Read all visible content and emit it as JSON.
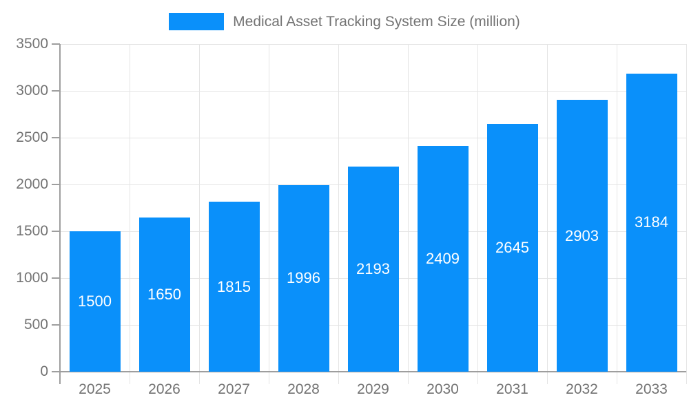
{
  "chart_data": {
    "type": "bar",
    "title": "Medical Asset Tracking System Size (million)",
    "legend": [
      "Medical Asset Tracking System Size (million)"
    ],
    "legend_position": "top-center",
    "categories": [
      "2025",
      "2026",
      "2027",
      "2028",
      "2029",
      "2030",
      "2031",
      "2032",
      "2033"
    ],
    "values": [
      1500,
      1650,
      1815,
      1996,
      2193,
      2409,
      2645,
      2903,
      3184
    ],
    "xlabel": "",
    "ylabel": "",
    "ylim": [
      0,
      3500
    ],
    "yticks": [
      0,
      500,
      1000,
      1500,
      2000,
      2500,
      3000,
      3500
    ],
    "grid": true,
    "bar_value_labels_visible": true,
    "colors": {
      "bar": "#0a90fa",
      "bar_label": "#ffffff",
      "axis": "#9e9e9e",
      "grid": "#e4e4e4",
      "tick_label": "#737373",
      "legend_text": "#737373",
      "background": "#ffffff"
    }
  }
}
